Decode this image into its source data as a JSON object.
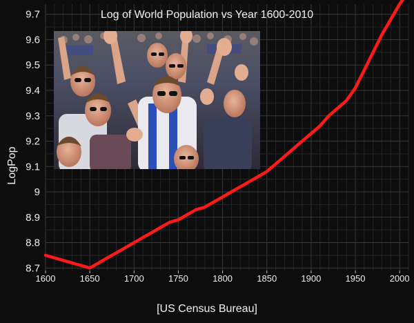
{
  "chart_data": {
    "type": "line",
    "title": "Log of World Population vs Year 1600-2010",
    "xlabel": "[US Census Bureau]",
    "ylabel": "LogPop",
    "xlim": [
      1600,
      2010
    ],
    "ylim": [
      8.69,
      9.74
    ],
    "x_ticks": [
      1600,
      1650,
      1700,
      1750,
      1800,
      1850,
      1900,
      1950,
      2000
    ],
    "y_ticks": [
      8.7,
      8.8,
      8.9,
      9.0,
      9.1,
      9.2,
      9.3,
      9.4,
      9.5,
      9.6,
      9.7
    ],
    "x_tick_labels": [
      "1600",
      "1650",
      "1700",
      "1750",
      "1800",
      "1850",
      "1900",
      "1950",
      "2000"
    ],
    "y_tick_labels": [
      "8.7",
      "8.8",
      "8.9",
      "9",
      "9.1",
      "9.2",
      "9.3",
      "9.4",
      "9.5",
      "9.6",
      "9.7"
    ],
    "grid": true,
    "series": [
      {
        "color": "#ff1a1a",
        "x": [
          1600,
          1610,
          1620,
          1630,
          1640,
          1650,
          1660,
          1670,
          1680,
          1690,
          1700,
          1710,
          1720,
          1730,
          1740,
          1750,
          1760,
          1770,
          1780,
          1790,
          1800,
          1810,
          1820,
          1830,
          1840,
          1850,
          1860,
          1870,
          1880,
          1890,
          1900,
          1910,
          1920,
          1930,
          1940,
          1950,
          1960,
          1970,
          1980,
          1990,
          2000,
          2010
        ],
        "y": [
          8.75,
          8.74,
          8.73,
          8.72,
          8.71,
          8.7,
          8.72,
          8.74,
          8.76,
          8.78,
          8.8,
          8.82,
          8.84,
          8.86,
          8.88,
          8.89,
          8.91,
          8.93,
          8.94,
          8.96,
          8.98,
          9.0,
          9.02,
          9.04,
          9.06,
          9.08,
          9.11,
          9.14,
          9.17,
          9.2,
          9.23,
          9.26,
          9.3,
          9.33,
          9.36,
          9.41,
          9.48,
          9.55,
          9.62,
          9.68,
          9.74,
          9.79
        ]
      }
    ],
    "inset_image": "crowd-photo"
  }
}
